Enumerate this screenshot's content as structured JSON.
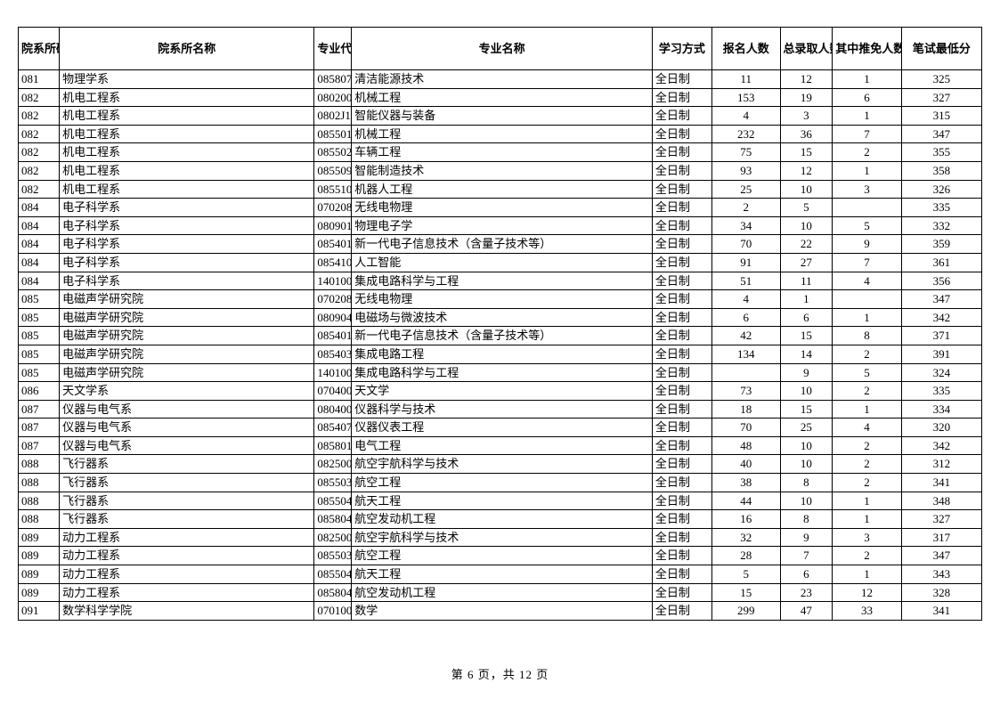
{
  "columns": [
    "院系所码",
    "院系所名称",
    "专业代码",
    "专业名称",
    "学习方式",
    "报名人数",
    "总录取人数",
    "其中推免人数",
    "笔试最低分"
  ],
  "rows": [
    [
      "081",
      "物理学系",
      "085807",
      "清洁能源技术",
      "全日制",
      "11",
      "12",
      "1",
      "325"
    ],
    [
      "082",
      "机电工程系",
      "080200",
      "机械工程",
      "全日制",
      "153",
      "19",
      "6",
      "327"
    ],
    [
      "082",
      "机电工程系",
      "0802J1",
      "智能仪器与装备",
      "全日制",
      "4",
      "3",
      "1",
      "315"
    ],
    [
      "082",
      "机电工程系",
      "085501",
      "机械工程",
      "全日制",
      "232",
      "36",
      "7",
      "347"
    ],
    [
      "082",
      "机电工程系",
      "085502",
      "车辆工程",
      "全日制",
      "75",
      "15",
      "2",
      "355"
    ],
    [
      "082",
      "机电工程系",
      "085509",
      "智能制造技术",
      "全日制",
      "93",
      "12",
      "1",
      "358"
    ],
    [
      "082",
      "机电工程系",
      "085510",
      "机器人工程",
      "全日制",
      "25",
      "10",
      "3",
      "326"
    ],
    [
      "084",
      "电子科学系",
      "070208",
      "无线电物理",
      "全日制",
      "2",
      "5",
      "",
      "335"
    ],
    [
      "084",
      "电子科学系",
      "080901",
      "物理电子学",
      "全日制",
      "34",
      "10",
      "5",
      "332"
    ],
    [
      "084",
      "电子科学系",
      "085401",
      "新一代电子信息技术（含量子技术等）",
      "全日制",
      "70",
      "22",
      "9",
      "359"
    ],
    [
      "084",
      "电子科学系",
      "085410",
      "人工智能",
      "全日制",
      "91",
      "27",
      "7",
      "361"
    ],
    [
      "084",
      "电子科学系",
      "140100",
      "集成电路科学与工程",
      "全日制",
      "51",
      "11",
      "4",
      "356"
    ],
    [
      "085",
      "电磁声学研究院",
      "070208",
      "无线电物理",
      "全日制",
      "4",
      "1",
      "",
      "347"
    ],
    [
      "085",
      "电磁声学研究院",
      "080904",
      "电磁场与微波技术",
      "全日制",
      "6",
      "6",
      "1",
      "342"
    ],
    [
      "085",
      "电磁声学研究院",
      "085401",
      "新一代电子信息技术（含量子技术等）",
      "全日制",
      "42",
      "15",
      "8",
      "371"
    ],
    [
      "085",
      "电磁声学研究院",
      "085403",
      "集成电路工程",
      "全日制",
      "134",
      "14",
      "2",
      "391"
    ],
    [
      "085",
      "电磁声学研究院",
      "140100",
      "集成电路科学与工程",
      "全日制",
      "",
      "9",
      "5",
      "324"
    ],
    [
      "086",
      "天文学系",
      "070400",
      "天文学",
      "全日制",
      "73",
      "10",
      "2",
      "335"
    ],
    [
      "087",
      "仪器与电气系",
      "080400",
      "仪器科学与技术",
      "全日制",
      "18",
      "15",
      "1",
      "334"
    ],
    [
      "087",
      "仪器与电气系",
      "085407",
      "仪器仪表工程",
      "全日制",
      "70",
      "25",
      "4",
      "320"
    ],
    [
      "087",
      "仪器与电气系",
      "085801",
      "电气工程",
      "全日制",
      "48",
      "10",
      "2",
      "342"
    ],
    [
      "088",
      "飞行器系",
      "082500",
      "航空宇航科学与技术",
      "全日制",
      "40",
      "10",
      "2",
      "312"
    ],
    [
      "088",
      "飞行器系",
      "085503",
      "航空工程",
      "全日制",
      "38",
      "8",
      "2",
      "341"
    ],
    [
      "088",
      "飞行器系",
      "085504",
      "航天工程",
      "全日制",
      "44",
      "10",
      "1",
      "348"
    ],
    [
      "088",
      "飞行器系",
      "085804",
      "航空发动机工程",
      "全日制",
      "16",
      "8",
      "1",
      "327"
    ],
    [
      "089",
      "动力工程系",
      "082500",
      "航空宇航科学与技术",
      "全日制",
      "32",
      "9",
      "3",
      "317"
    ],
    [
      "089",
      "动力工程系",
      "085503",
      "航空工程",
      "全日制",
      "28",
      "7",
      "2",
      "347"
    ],
    [
      "089",
      "动力工程系",
      "085504",
      "航天工程",
      "全日制",
      "5",
      "6",
      "1",
      "343"
    ],
    [
      "089",
      "动力工程系",
      "085804",
      "航空发动机工程",
      "全日制",
      "15",
      "23",
      "12",
      "328"
    ],
    [
      "091",
      "数学科学学院",
      "070100",
      "数学",
      "全日制",
      "299",
      "47",
      "33",
      "341"
    ]
  ],
  "pager": "第 6 页，共 12 页"
}
